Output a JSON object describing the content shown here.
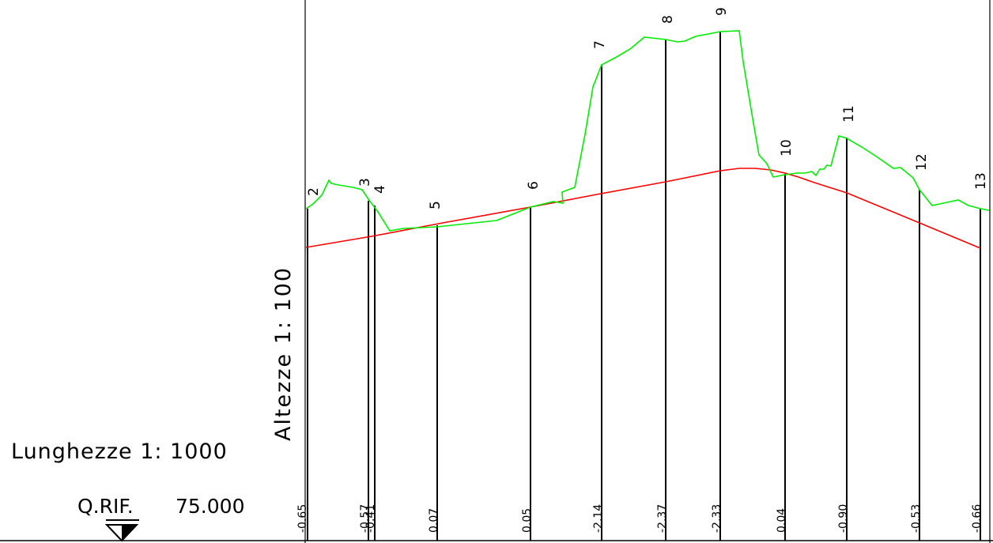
{
  "labels": {
    "lunghezze": "Lunghezze 1: 1000",
    "altezze": "Altezze 1: 100",
    "qrif_prefix": "Q.RIF.",
    "qrif_value": "75.000"
  },
  "colors": {
    "terrain": "#00ee00",
    "grade": "#ff0000",
    "lines": "#000000"
  },
  "chart_data": {
    "type": "line",
    "sections": [
      {
        "id": "2",
        "value": "-0.65"
      },
      {
        "id": "3",
        "value": "-0.57"
      },
      {
        "id": "4",
        "value": "-0.41"
      },
      {
        "id": "5",
        "value": "0.07"
      },
      {
        "id": "6",
        "value": "0.05"
      },
      {
        "id": "7",
        "value": "-2.14"
      },
      {
        "id": "8",
        "value": "-2.37"
      },
      {
        "id": "9",
        "value": "-2.33"
      },
      {
        "id": "10",
        "value": "0.04"
      },
      {
        "id": "11",
        "value": "-0.90"
      },
      {
        "id": "12",
        "value": "-0.53"
      },
      {
        "id": "13",
        "value": "-0.66"
      }
    ],
    "series": [
      {
        "type": "terrain"
      },
      {
        "type": "grade"
      }
    ]
  }
}
